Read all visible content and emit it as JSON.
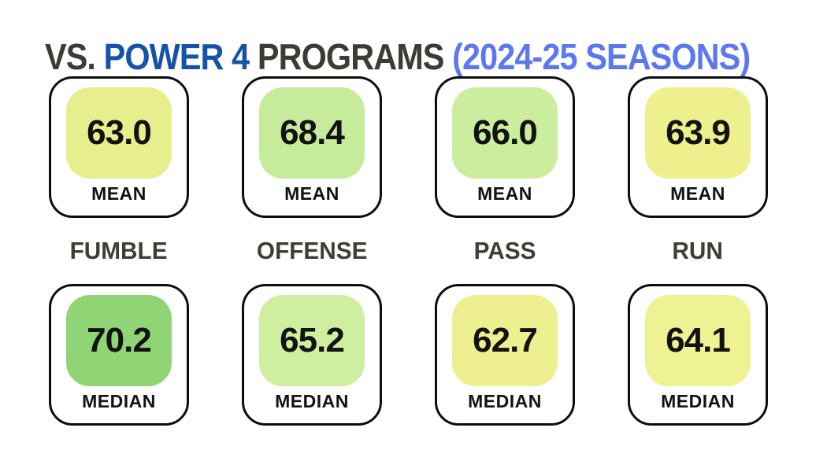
{
  "title": {
    "part_vs": "VS. ",
    "part_power4": "POWER 4 ",
    "part_programs": "PROGRAMS ",
    "part_seasons": "(2024-25 SEASONS)",
    "dark_color": "#3a3d33",
    "blue_color": "#1453a7",
    "light_blue_color": "#5c78f0"
  },
  "category_label_color": "#3c4033",
  "chart_data": {
    "type": "table",
    "title": "VS. POWER 4 PROGRAMS (2024-25 SEASONS)",
    "categories": [
      "FUMBLE",
      "OFFENSE",
      "PASS",
      "RUN"
    ],
    "series": [
      {
        "name": "MEAN",
        "values": [
          63.0,
          68.4,
          66.0,
          63.9
        ]
      },
      {
        "name": "MEDIAN",
        "values": [
          70.2,
          65.2,
          62.7,
          64.1
        ]
      }
    ],
    "color_scale_note": "higher value = greener, lower value = more yellow"
  },
  "columns": [
    {
      "label": "FUMBLE",
      "mean": {
        "value": "63.0",
        "label": "MEAN",
        "color": "#e7ee8e"
      },
      "median": {
        "value": "70.2",
        "label": "MEDIAN",
        "color": "#8fd576"
      }
    },
    {
      "label": "OFFENSE",
      "mean": {
        "value": "68.4",
        "label": "MEAN",
        "color": "#c6ec9b"
      },
      "median": {
        "value": "65.2",
        "label": "MEDIAN",
        "color": "#cdef9f"
      }
    },
    {
      "label": "PASS",
      "mean": {
        "value": "66.0",
        "label": "MEAN",
        "color": "#caed9e"
      },
      "median": {
        "value": "62.7",
        "label": "MEDIAN",
        "color": "#eef08f"
      }
    },
    {
      "label": "RUN",
      "mean": {
        "value": "63.9",
        "label": "MEAN",
        "color": "#edf08d"
      },
      "median": {
        "value": "64.1",
        "label": "MEDIAN",
        "color": "#eef293"
      }
    }
  ]
}
